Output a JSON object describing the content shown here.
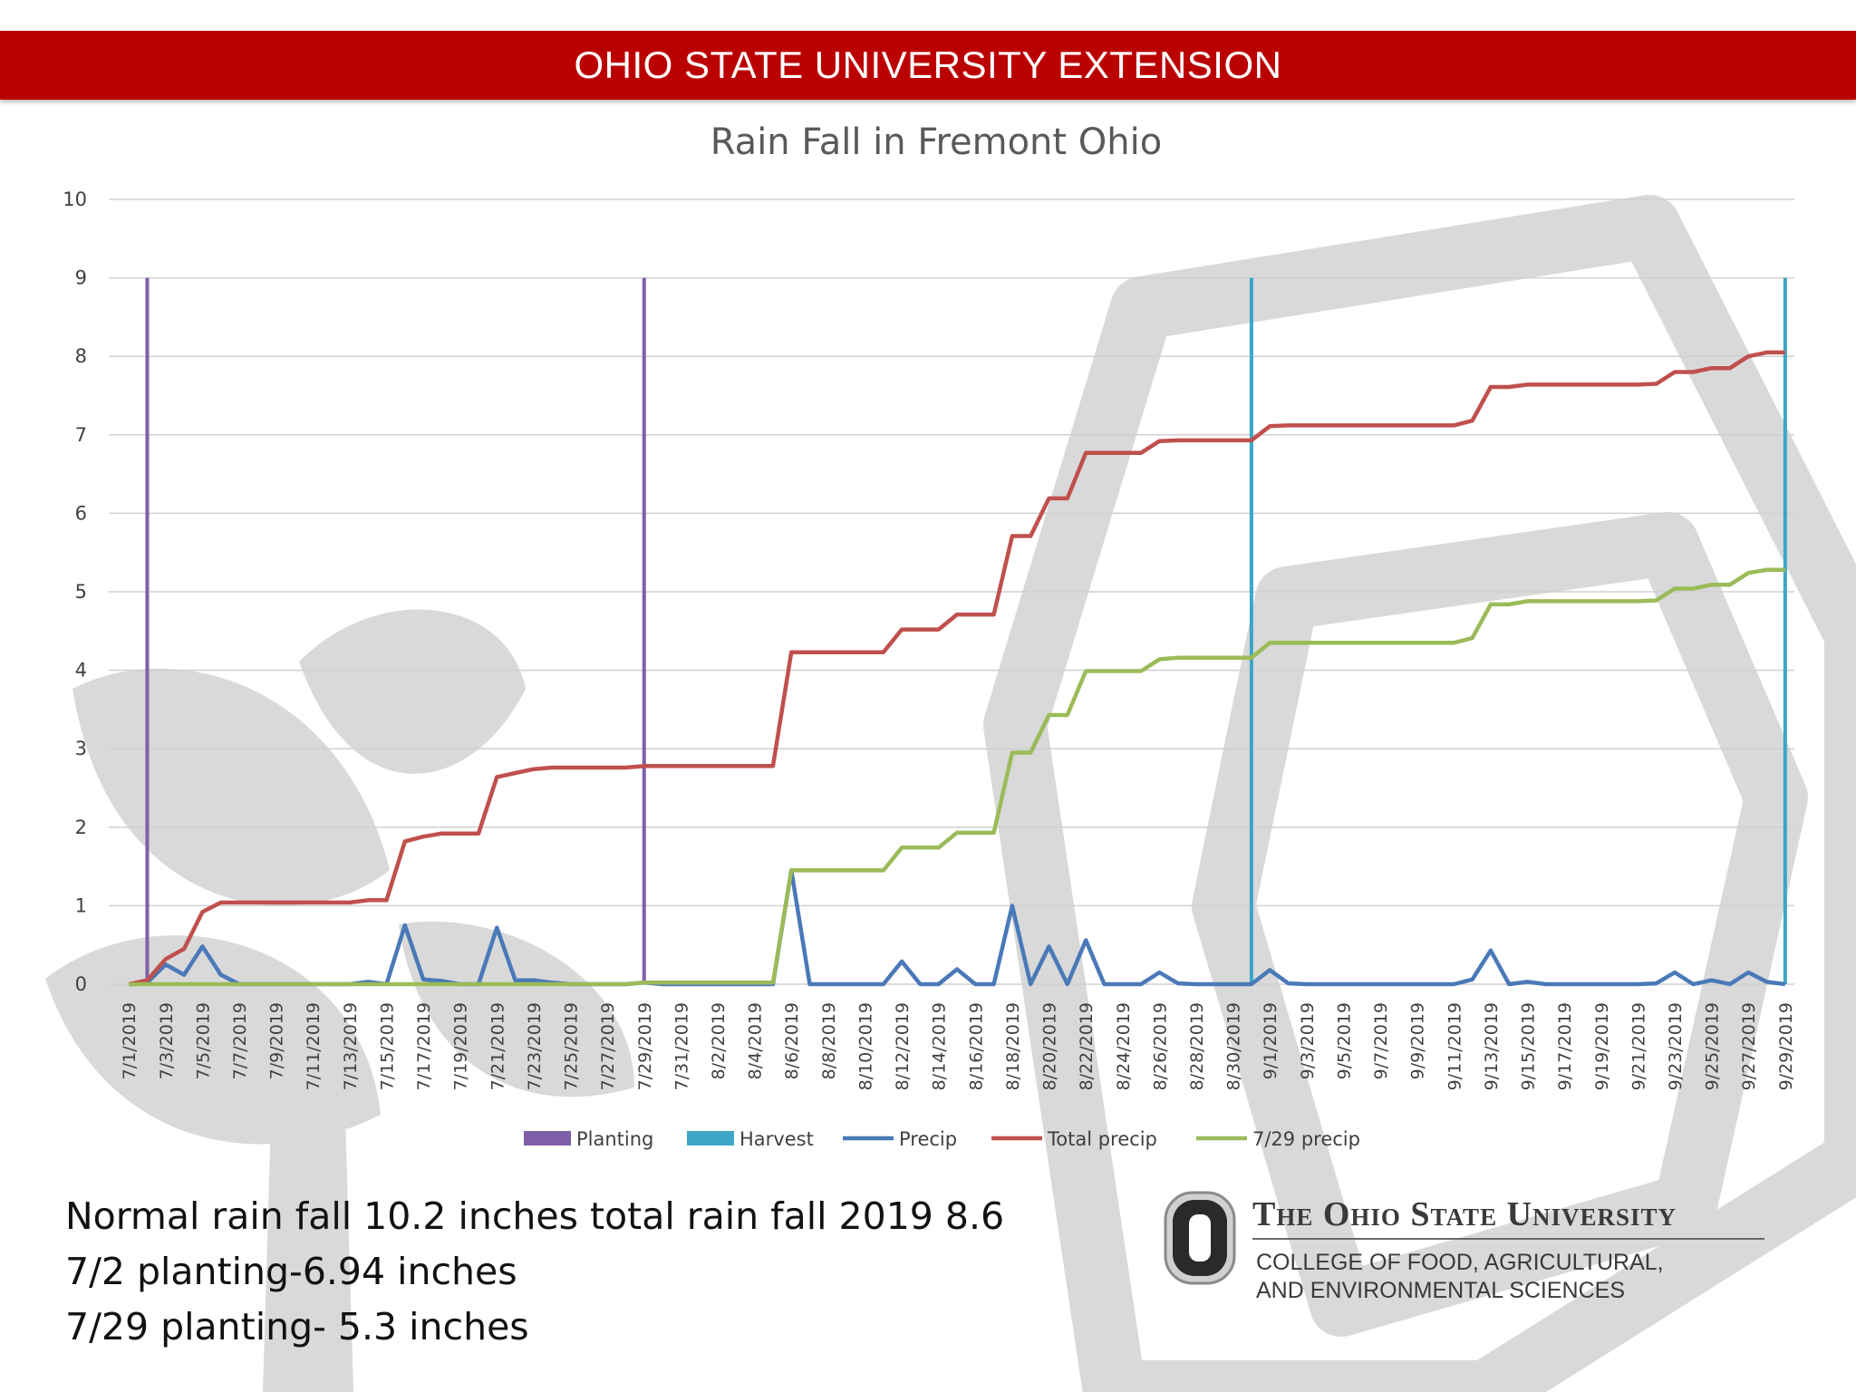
{
  "header": {
    "banner": "OHIO STATE UNIVERSITY EXTENSION"
  },
  "notes": [
    "Normal rain fall 10.2 inches total rain fall 2019 8.6",
    "7/2 planting-6.94 inches",
    "7/29 planting- 5.3 inches"
  ],
  "logo": {
    "name": "The Ohio State University",
    "college_line1": "COLLEGE OF FOOD, AGRICULTURAL,",
    "college_line2": "AND ENVIRONMENTAL SCIENCES"
  },
  "chart_data": {
    "type": "line",
    "title": "Rain Fall in Fremont Ohio",
    "xlabel": "",
    "ylabel": "",
    "ylim": [
      0,
      10
    ],
    "yticks": [
      0,
      1,
      2,
      3,
      4,
      5,
      6,
      7,
      8,
      9,
      10
    ],
    "grid": true,
    "legend_position": "bottom",
    "categories": [
      "7/1/2019",
      "7/2/2019",
      "7/3/2019",
      "7/4/2019",
      "7/5/2019",
      "7/6/2019",
      "7/7/2019",
      "7/8/2019",
      "7/9/2019",
      "7/10/2019",
      "7/11/2019",
      "7/12/2019",
      "7/13/2019",
      "7/14/2019",
      "7/15/2019",
      "7/16/2019",
      "7/17/2019",
      "7/18/2019",
      "7/19/2019",
      "7/20/2019",
      "7/21/2019",
      "7/22/2019",
      "7/23/2019",
      "7/24/2019",
      "7/25/2019",
      "7/26/2019",
      "7/27/2019",
      "7/28/2019",
      "7/29/2019",
      "7/30/2019",
      "7/31/2019",
      "8/1/2019",
      "8/2/2019",
      "8/3/2019",
      "8/4/2019",
      "8/5/2019",
      "8/6/2019",
      "8/7/2019",
      "8/8/2019",
      "8/9/2019",
      "8/10/2019",
      "8/11/2019",
      "8/12/2019",
      "8/13/2019",
      "8/14/2019",
      "8/15/2019",
      "8/16/2019",
      "8/17/2019",
      "8/18/2019",
      "8/19/2019",
      "8/20/2019",
      "8/21/2019",
      "8/22/2019",
      "8/23/2019",
      "8/24/2019",
      "8/25/2019",
      "8/26/2019",
      "8/27/2019",
      "8/28/2019",
      "8/29/2019",
      "8/30/2019",
      "8/31/2019",
      "9/1/2019",
      "9/2/2019",
      "9/3/2019",
      "9/4/2019",
      "9/5/2019",
      "9/6/2019",
      "9/7/2019",
      "9/8/2019",
      "9/9/2019",
      "9/10/2019",
      "9/11/2019",
      "9/12/2019",
      "9/13/2019",
      "9/14/2019",
      "9/15/2019",
      "9/16/2019",
      "9/17/2019",
      "9/18/2019",
      "9/19/2019",
      "9/20/2019",
      "9/21/2019",
      "9/22/2019",
      "9/23/2019",
      "9/24/2019",
      "9/25/2019",
      "9/26/2019",
      "9/27/2019",
      "9/28/2019",
      "9/29/2019"
    ],
    "series": [
      {
        "name": "Planting",
        "kind": "vline",
        "color": "#7f5fa8",
        "x_index": [
          1,
          28
        ]
      },
      {
        "name": "Harvest",
        "kind": "vline",
        "color": "#3ea6c6",
        "x_index": [
          61,
          90
        ]
      },
      {
        "name": "Precip",
        "kind": "line",
        "color": "#4a79b8",
        "values": [
          0,
          0.02,
          0.25,
          0.12,
          0.48,
          0.12,
          0,
          0,
          0,
          0,
          0,
          0,
          0,
          0.03,
          0,
          0.75,
          0.06,
          0.04,
          0,
          0,
          0.72,
          0.05,
          0.05,
          0.02,
          0,
          0,
          0,
          0,
          0.02,
          0,
          0,
          0,
          0,
          0,
          0,
          0,
          1.45,
          0,
          0,
          0,
          0,
          0,
          0.29,
          0,
          0,
          0.19,
          0,
          0,
          1.0,
          0,
          0.48,
          0,
          0.56,
          0,
          0,
          0,
          0.15,
          0.01,
          0,
          0,
          0,
          0,
          0.18,
          0.01,
          0,
          0,
          0,
          0,
          0,
          0,
          0,
          0,
          0,
          0.06,
          0.43,
          0,
          0.03,
          0,
          0,
          0,
          0,
          0,
          0,
          0.01,
          0.15,
          0,
          0.05,
          0,
          0.15,
          0.03,
          0
        ]
      },
      {
        "name": "Total precip",
        "kind": "line",
        "color": "#c0504d",
        "values": [
          0,
          0.05,
          0.32,
          0.45,
          0.92,
          1.04,
          1.04,
          1.04,
          1.04,
          1.04,
          1.04,
          1.04,
          1.04,
          1.07,
          1.07,
          1.82,
          1.88,
          1.92,
          1.92,
          1.92,
          2.64,
          2.69,
          2.74,
          2.76,
          2.76,
          2.76,
          2.76,
          2.76,
          2.78,
          2.78,
          2.78,
          2.78,
          2.78,
          2.78,
          2.78,
          2.78,
          4.23,
          4.23,
          4.23,
          4.23,
          4.23,
          4.23,
          4.52,
          4.52,
          4.52,
          4.71,
          4.71,
          4.71,
          5.71,
          5.71,
          6.19,
          6.19,
          6.77,
          6.77,
          6.77,
          6.77,
          6.92,
          6.93,
          6.93,
          6.93,
          6.93,
          6.93,
          7.11,
          7.12,
          7.12,
          7.12,
          7.12,
          7.12,
          7.12,
          7.12,
          7.12,
          7.12,
          7.12,
          7.18,
          7.61,
          7.61,
          7.64,
          7.64,
          7.64,
          7.64,
          7.64,
          7.64,
          7.64,
          7.65,
          7.8,
          7.8,
          7.85,
          7.85,
          8.0,
          8.05,
          8.05
        ]
      },
      {
        "name": "7/29 precip",
        "kind": "line",
        "color": "#9bbb59",
        "values": [
          0,
          0,
          0,
          0,
          0,
          0,
          0,
          0,
          0,
          0,
          0,
          0,
          0,
          0,
          0,
          0,
          0,
          0,
          0,
          0,
          0,
          0,
          0,
          0,
          0,
          0,
          0,
          0,
          0.02,
          0.02,
          0.02,
          0.02,
          0.02,
          0.02,
          0.02,
          0.02,
          1.45,
          1.45,
          1.45,
          1.45,
          1.45,
          1.45,
          1.74,
          1.74,
          1.74,
          1.93,
          1.93,
          1.93,
          2.95,
          2.95,
          3.43,
          3.43,
          3.99,
          3.99,
          3.99,
          3.99,
          4.14,
          4.16,
          4.16,
          4.16,
          4.16,
          4.16,
          4.35,
          4.35,
          4.35,
          4.35,
          4.35,
          4.35,
          4.35,
          4.35,
          4.35,
          4.35,
          4.35,
          4.41,
          4.84,
          4.84,
          4.88,
          4.88,
          4.88,
          4.88,
          4.88,
          4.88,
          4.88,
          4.89,
          5.04,
          5.04,
          5.09,
          5.09,
          5.24,
          5.28,
          5.28
        ]
      }
    ]
  }
}
